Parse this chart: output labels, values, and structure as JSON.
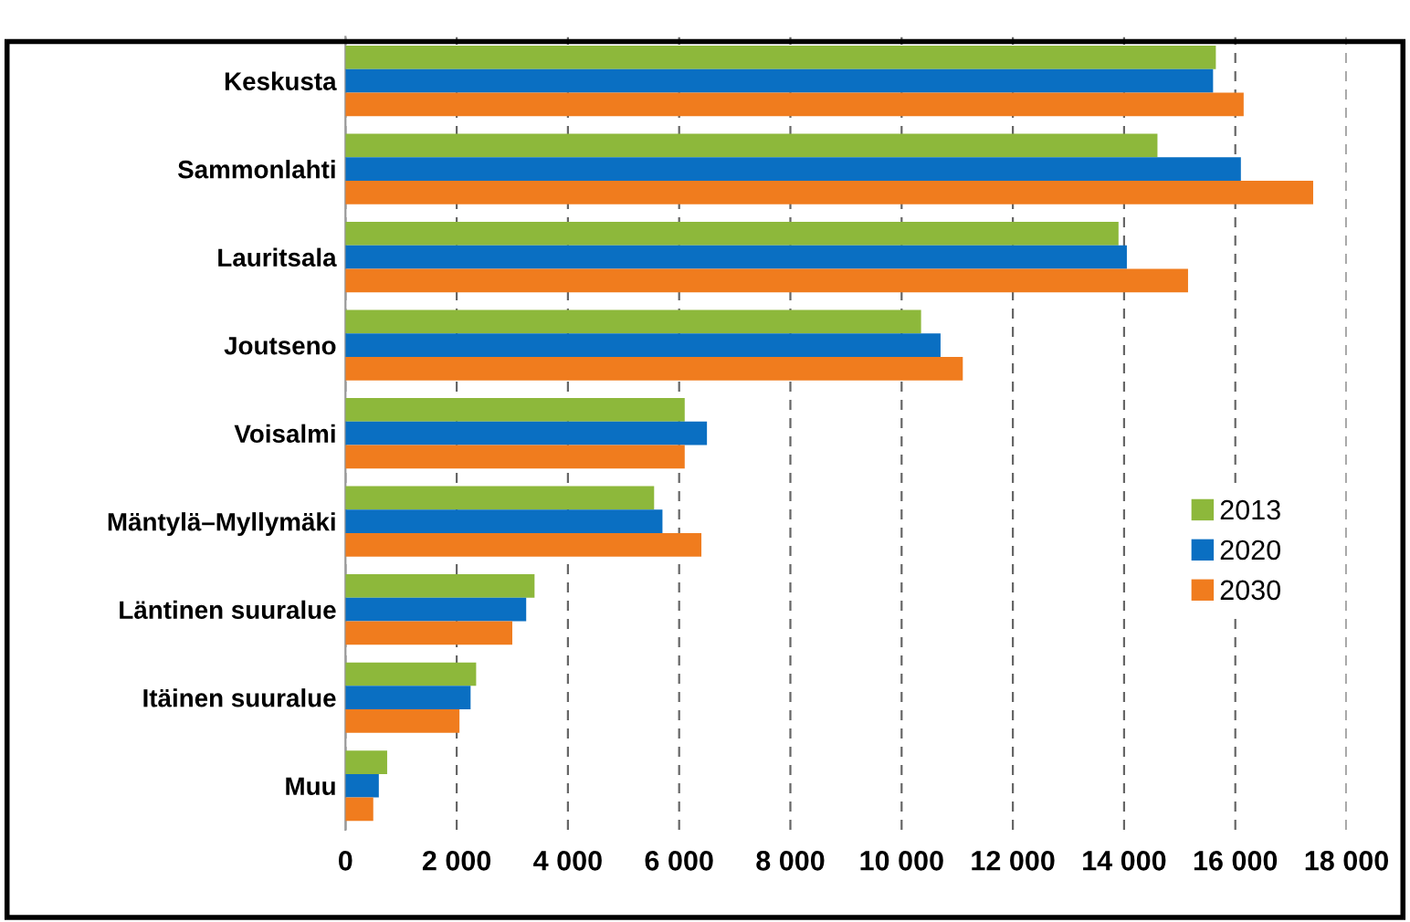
{
  "chart_data": {
    "type": "bar",
    "orientation": "horizontal",
    "categories": [
      "Keskusta",
      "Sammonlahti",
      "Lauritsala",
      "Joutseno",
      "Voisalmi",
      "Mäntylä–Myllymäki",
      "Läntinen suuralue",
      "Itäinen suuralue",
      "Muu"
    ],
    "series": [
      {
        "name": "2013",
        "color": "#8db83b",
        "values": [
          15650,
          14600,
          13900,
          10350,
          6100,
          5550,
          3400,
          2350,
          750
        ]
      },
      {
        "name": "2020",
        "color": "#0a6fc2",
        "values": [
          15600,
          16100,
          14050,
          10700,
          6500,
          5700,
          3250,
          2250,
          600
        ]
      },
      {
        "name": "2030",
        "color": "#f07c1e",
        "values": [
          16150,
          17400,
          15150,
          11100,
          6100,
          6400,
          3000,
          2050,
          500
        ]
      }
    ],
    "xlim": [
      0,
      18000
    ],
    "xticks": [
      0,
      {
        "value": 2000,
        "label": "2 000"
      },
      {
        "value": 4000,
        "label": "4 000"
      },
      {
        "value": 6000,
        "label": "6 000"
      },
      {
        "value": 8000,
        "label": "8 000"
      },
      {
        "value": 10000,
        "label": "10 000"
      },
      {
        "value": 12000,
        "label": "12 000"
      },
      {
        "value": 14000,
        "label": "14 000"
      },
      {
        "value": 16000,
        "label": "16 000"
      },
      {
        "value": 18000,
        "label": "18 000"
      }
    ],
    "grid": "x",
    "legend": "right"
  }
}
